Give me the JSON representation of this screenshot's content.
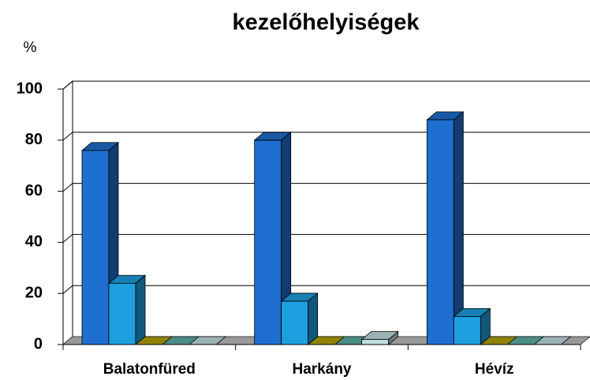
{
  "chart_data": {
    "type": "bar3d",
    "title": "kezelőhelyiségek",
    "y_label": "%",
    "categories": [
      "Balatonfüred",
      "Harkány",
      "Hévíz"
    ],
    "series": [
      {
        "color": "#1e6fd0",
        "values": [
          76,
          80,
          88
        ]
      },
      {
        "color": "#1ea0e0",
        "values": [
          24,
          17,
          11
        ]
      },
      {
        "color": "#b4a400",
        "values": [
          0,
          0,
          0
        ]
      },
      {
        "color": "#5fb0a8",
        "values": [
          0,
          0,
          0
        ]
      },
      {
        "color": "#c0dede",
        "values": [
          0,
          2,
          0
        ]
      }
    ],
    "ylim": [
      0,
      100
    ],
    "yticks": [
      0,
      20,
      40,
      60,
      80,
      100
    ],
    "grid": true
  }
}
